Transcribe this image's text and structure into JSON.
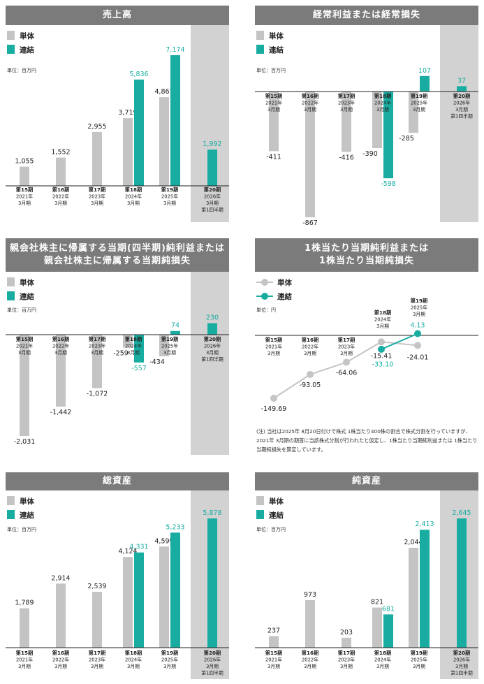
{
  "legend": {
    "single": "単体",
    "consolidated": "連結"
  },
  "unit_mn": "単位：百万円",
  "unit_yen": "単位：円",
  "colors": {
    "single": "#c4c4c4",
    "consolidated": "#19ada2",
    "shade": "#d2d2d2",
    "header": "#7b7b7b"
  },
  "periods": [
    [
      "第15期",
      "2021年",
      "3月期"
    ],
    [
      "第16期",
      "2022年",
      "3月期"
    ],
    [
      "第17期",
      "2023年",
      "3月期"
    ],
    [
      "第18期",
      "2024年",
      "3月期"
    ],
    [
      "第19期",
      "2025年",
      "3月期"
    ],
    [
      "第20期",
      "2026年",
      "3月期",
      "第1四半期"
    ]
  ],
  "note": "(注) 当社は2025年 8月20日付けで株式 1株当たり400株の割合で株式分割を行っていますが、2021年 3月期の期首に当該株式分割が行われたと仮定し、1株当たり当期純利益または 1株当たり当期純損失を算定しています。",
  "chart_data": [
    {
      "type": "bar",
      "title": "売上高",
      "categories": [
        "第15期",
        "第16期",
        "第17期",
        "第18期",
        "第19期",
        "第20期"
      ],
      "series": [
        {
          "name": "単体",
          "values": [
            1055,
            1552,
            2955,
            3719,
            4867,
            null
          ],
          "labels": [
            "1,055",
            "1,552",
            "2,955",
            "3,719",
            "4,867",
            ""
          ]
        },
        {
          "name": "連結",
          "values": [
            null,
            null,
            null,
            5836,
            7174,
            1992
          ],
          "labels": [
            "",
            "",
            "",
            "5,836",
            "7,174",
            "1,992"
          ]
        }
      ]
    },
    {
      "type": "bar",
      "title": "経常利益または経常損失",
      "categories": [
        "第15期",
        "第16期",
        "第17期",
        "第18期",
        "第19期",
        "第20期"
      ],
      "series": [
        {
          "name": "単体",
          "values": [
            -411,
            -867,
            -416,
            -390,
            -285,
            null
          ],
          "labels": [
            "-411",
            "-867",
            "-416",
            "-390",
            "-285",
            ""
          ]
        },
        {
          "name": "連結",
          "values": [
            null,
            null,
            null,
            -598,
            107,
            37
          ],
          "labels": [
            "",
            "",
            "",
            "-598",
            "107",
            "37"
          ]
        }
      ]
    },
    {
      "type": "bar",
      "title": "親会社株主に帰属する当期(四半期)純利益または親会社株主に帰属する当期純損失",
      "categories": [
        "第15期",
        "第16期",
        "第17期",
        "第18期",
        "第19期",
        "第20期"
      ],
      "series": [
        {
          "name": "単体",
          "values": [
            -2031,
            -1442,
            -1072,
            -259,
            -434,
            null
          ],
          "labels": [
            "-2,031",
            "-1,442",
            "-1,072",
            "-259",
            "-434",
            ""
          ]
        },
        {
          "name": "連結",
          "values": [
            null,
            null,
            null,
            -557,
            74,
            230
          ],
          "labels": [
            "",
            "",
            "",
            "-557",
            "74",
            "230"
          ]
        }
      ]
    },
    {
      "type": "line",
      "title": "1株当たり当期純利益または1株当たり当期純損失",
      "categories": [
        "第15期",
        "第16期",
        "第17期",
        "第18期",
        "第19期"
      ],
      "series": [
        {
          "name": "単体",
          "values": [
            -149.69,
            -93.05,
            -64.06,
            -15.41,
            -24.01
          ],
          "labels": [
            "-149.69",
            "-93.05",
            "-64.06",
            "-15.41",
            "-24.01"
          ]
        },
        {
          "name": "連結",
          "values": [
            null,
            null,
            null,
            -33.1,
            4.13
          ],
          "labels": [
            "",
            "",
            "",
            "-33.10",
            "4.13"
          ]
        }
      ]
    },
    {
      "type": "bar",
      "title": "総資産",
      "categories": [
        "第15期",
        "第16期",
        "第17期",
        "第18期",
        "第19期",
        "第20期"
      ],
      "series": [
        {
          "name": "単体",
          "values": [
            1789,
            2914,
            2539,
            4124,
            4599,
            null
          ],
          "labels": [
            "1,789",
            "2,914",
            "2,539",
            "4,124",
            "4,599",
            ""
          ]
        },
        {
          "name": "連結",
          "values": [
            null,
            null,
            null,
            4331,
            5233,
            5878
          ],
          "labels": [
            "",
            "",
            "",
            "4,331",
            "5,233",
            "5,878"
          ]
        }
      ]
    },
    {
      "type": "bar",
      "title": "純資産",
      "categories": [
        "第15期",
        "第16期",
        "第17期",
        "第18期",
        "第19期",
        "第20期"
      ],
      "series": [
        {
          "name": "単体",
          "values": [
            237,
            973,
            203,
            821,
            2044,
            null
          ],
          "labels": [
            "237",
            "973",
            "203",
            "821",
            "2,044",
            ""
          ]
        },
        {
          "name": "連結",
          "values": [
            null,
            null,
            null,
            681,
            2413,
            2645
          ],
          "labels": [
            "",
            "",
            "",
            "681",
            "2,413",
            "2,645"
          ]
        }
      ]
    }
  ]
}
